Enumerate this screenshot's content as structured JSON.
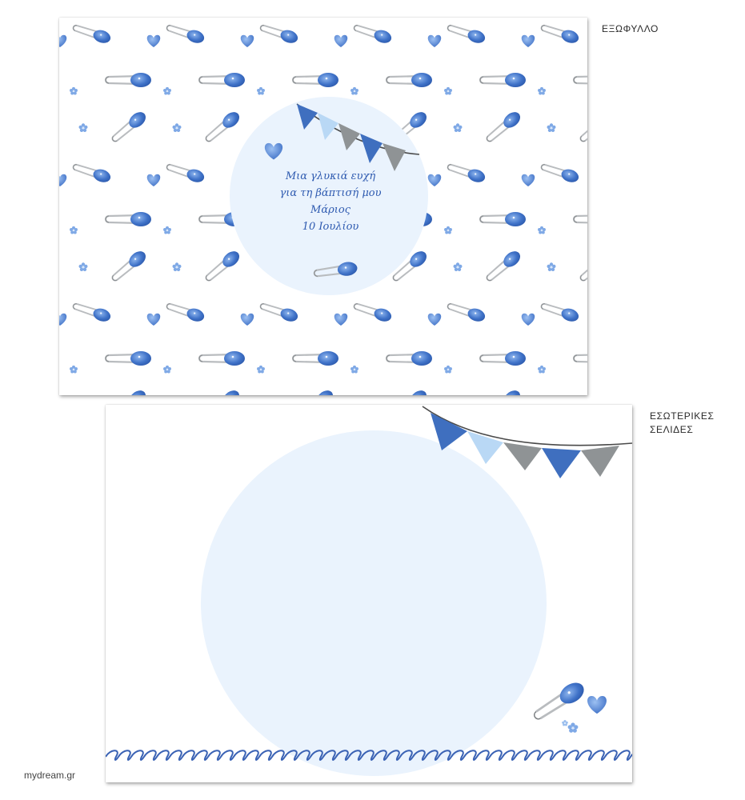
{
  "labels": {
    "cover": "ΕΞΩΦΥΛΛΟ",
    "inner_line1": "ΕΣΩΤΕΡΙΚΕΣ",
    "inner_line2": "ΣΕΛΙΔΕΣ"
  },
  "brand": "mydream.gr",
  "cover_text": {
    "line1": "Μια γλυκιά ευχή",
    "line2": "για τη βάπτισή μου",
    "name": "Μάριος",
    "date": "10 Ιουλίου"
  },
  "icons": [
    "safety-pin-icon",
    "heart-icon",
    "flower-icon",
    "bunting-flag-icon"
  ],
  "colors": {
    "blue": "#3f72c8",
    "light_blue": "#b9d8f5",
    "gray": "#8f9395",
    "circle": "#eaf3fd",
    "text_blue": "#2e5ab0"
  }
}
